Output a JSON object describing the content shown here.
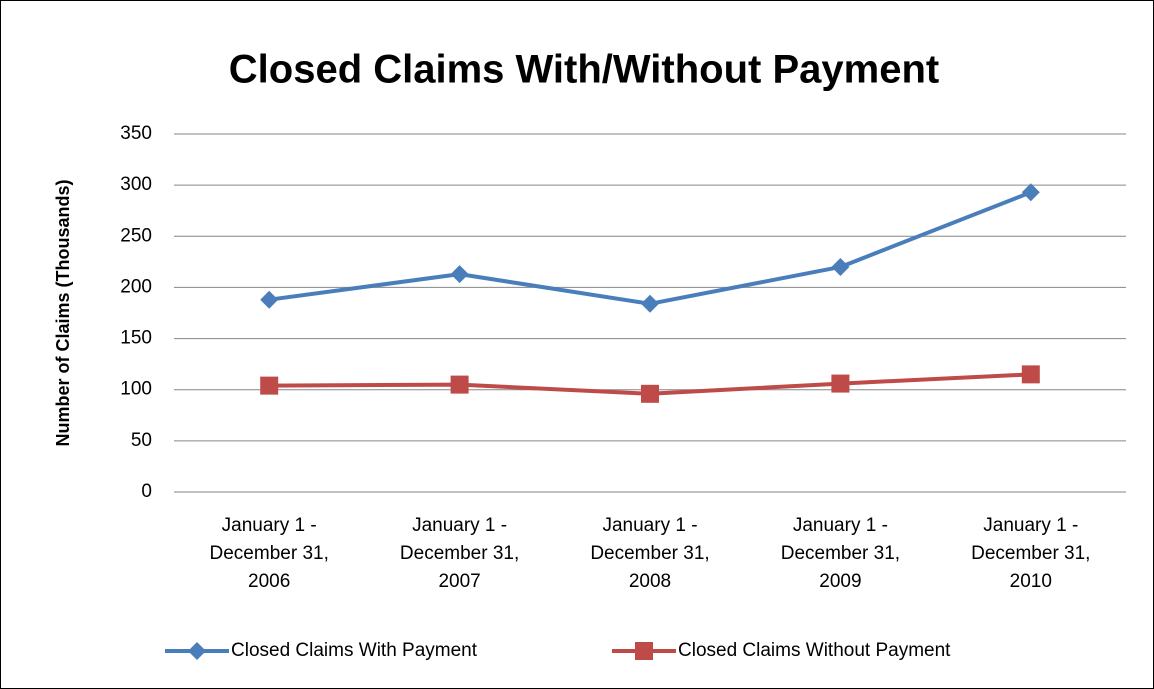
{
  "chart_data": {
    "type": "line",
    "title": "Closed Claims With/Without Payment",
    "y_label": "Number of Claims (Thousands)",
    "categories": [
      "January 1 - December 31, 2006",
      "January 1 - December 31, 2007",
      "January 1 - December 31, 2008",
      "January 1 - December 31, 2009",
      "January 1 - December 31, 2010"
    ],
    "series": [
      {
        "name": "Closed Claims With Payment",
        "color": "#4a7ebb",
        "marker": "diamond",
        "values": [
          188,
          213,
          184,
          220,
          293
        ]
      },
      {
        "name": "Closed Claims Without Payment",
        "color": "#be4b48",
        "marker": "square",
        "values": [
          104,
          105,
          96,
          106,
          115
        ]
      }
    ],
    "ylim": [
      0,
      350
    ],
    "yticks": [
      0,
      50,
      100,
      150,
      200,
      250,
      300,
      350
    ],
    "grid": true,
    "legend": "bottom"
  }
}
